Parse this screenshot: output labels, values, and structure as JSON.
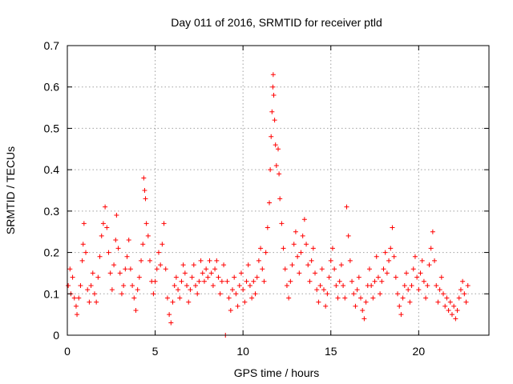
{
  "chart_data": {
    "type": "scatter",
    "title": "Day 011 of 2016, SRMTID for receiver ptld",
    "xlabel": "GPS time / hours",
    "ylabel": "SRMTID / TECUs",
    "xlim": [
      0,
      24
    ],
    "ylim": [
      0,
      0.7
    ],
    "xticks": [
      0,
      5,
      10,
      15,
      20
    ],
    "xtick_labels": [
      "0",
      "5",
      "10",
      "15",
      "20"
    ],
    "yticks": [
      0,
      0.1,
      0.2,
      0.3,
      0.4,
      0.5,
      0.6,
      0.7
    ],
    "ytick_labels": [
      "0",
      "0.1",
      "0.2",
      "0.3",
      "0.4",
      "0.5",
      "0.6",
      "0.7"
    ],
    "grid": true,
    "marker": "+",
    "color": "#ff0000",
    "series": [
      {
        "name": "SRMTID",
        "points": [
          [
            0.05,
            0.12
          ],
          [
            0.15,
            0.16
          ],
          [
            0.2,
            0.1
          ],
          [
            0.3,
            0.14
          ],
          [
            0.4,
            0.09
          ],
          [
            0.5,
            0.07
          ],
          [
            0.55,
            0.05
          ],
          [
            0.65,
            0.09
          ],
          [
            0.75,
            0.12
          ],
          [
            0.85,
            0.18
          ],
          [
            0.9,
            0.22
          ],
          [
            0.95,
            0.27
          ],
          [
            1.05,
            0.2
          ],
          [
            1.15,
            0.11
          ],
          [
            1.25,
            0.08
          ],
          [
            1.35,
            0.12
          ],
          [
            1.45,
            0.15
          ],
          [
            1.55,
            0.1
          ],
          [
            1.65,
            0.08
          ],
          [
            1.75,
            0.14
          ],
          [
            1.85,
            0.19
          ],
          [
            1.95,
            0.24
          ],
          [
            2.05,
            0.27
          ],
          [
            2.15,
            0.31
          ],
          [
            2.25,
            0.26
          ],
          [
            2.35,
            0.2
          ],
          [
            2.45,
            0.15
          ],
          [
            2.55,
            0.11
          ],
          [
            2.65,
            0.17
          ],
          [
            2.75,
            0.23
          ],
          [
            2.8,
            0.29
          ],
          [
            2.9,
            0.21
          ],
          [
            3.0,
            0.15
          ],
          [
            3.1,
            0.1
          ],
          [
            3.2,
            0.12
          ],
          [
            3.3,
            0.16
          ],
          [
            3.4,
            0.19
          ],
          [
            3.5,
            0.23
          ],
          [
            3.6,
            0.16
          ],
          [
            3.7,
            0.12
          ],
          [
            3.8,
            0.09
          ],
          [
            3.9,
            0.06
          ],
          [
            4.0,
            0.11
          ],
          [
            4.1,
            0.14
          ],
          [
            4.2,
            0.18
          ],
          [
            4.3,
            0.22
          ],
          [
            4.35,
            0.38
          ],
          [
            4.4,
            0.35
          ],
          [
            4.45,
            0.33
          ],
          [
            4.5,
            0.27
          ],
          [
            4.6,
            0.24
          ],
          [
            4.7,
            0.18
          ],
          [
            4.8,
            0.13
          ],
          [
            4.9,
            0.1
          ],
          [
            5.0,
            0.13
          ],
          [
            5.1,
            0.16
          ],
          [
            5.2,
            0.2
          ],
          [
            5.3,
            0.17
          ],
          [
            5.4,
            0.22
          ],
          [
            5.5,
            0.27
          ],
          [
            5.6,
            0.16
          ],
          [
            5.7,
            0.09
          ],
          [
            5.8,
            0.05
          ],
          [
            5.9,
            0.03
          ],
          [
            6.0,
            0.08
          ],
          [
            6.1,
            0.12
          ],
          [
            6.2,
            0.14
          ],
          [
            6.3,
            0.11
          ],
          [
            6.4,
            0.09
          ],
          [
            6.5,
            0.13
          ],
          [
            6.6,
            0.17
          ],
          [
            6.7,
            0.15
          ],
          [
            6.8,
            0.12
          ],
          [
            6.9,
            0.08
          ],
          [
            7.0,
            0.11
          ],
          [
            7.1,
            0.14
          ],
          [
            7.2,
            0.17
          ],
          [
            7.3,
            0.12
          ],
          [
            7.4,
            0.1
          ],
          [
            7.5,
            0.13
          ],
          [
            7.6,
            0.18
          ],
          [
            7.7,
            0.15
          ],
          [
            7.8,
            0.13
          ],
          [
            7.9,
            0.16
          ],
          [
            8.0,
            0.14
          ],
          [
            8.1,
            0.18
          ],
          [
            8.2,
            0.15
          ],
          [
            8.3,
            0.12
          ],
          [
            8.4,
            0.16
          ],
          [
            8.5,
            0.18
          ],
          [
            8.6,
            0.14
          ],
          [
            8.7,
            0.1
          ],
          [
            8.8,
            0.13
          ],
          [
            8.9,
            0.17
          ],
          [
            9.0,
            0.0
          ],
          [
            9.1,
            0.13
          ],
          [
            9.2,
            0.09
          ],
          [
            9.3,
            0.06
          ],
          [
            9.4,
            0.11
          ],
          [
            9.5,
            0.14
          ],
          [
            9.6,
            0.1
          ],
          [
            9.7,
            0.07
          ],
          [
            9.8,
            0.12
          ],
          [
            9.9,
            0.15
          ],
          [
            10.0,
            0.11
          ],
          [
            10.1,
            0.08
          ],
          [
            10.2,
            0.13
          ],
          [
            10.3,
            0.17
          ],
          [
            10.4,
            0.12
          ],
          [
            10.5,
            0.09
          ],
          [
            10.6,
            0.13
          ],
          [
            10.7,
            0.1
          ],
          [
            10.8,
            0.14
          ],
          [
            10.9,
            0.18
          ],
          [
            11.0,
            0.21
          ],
          [
            11.1,
            0.16
          ],
          [
            11.2,
            0.13
          ],
          [
            11.3,
            0.2
          ],
          [
            11.4,
            0.26
          ],
          [
            11.5,
            0.32
          ],
          [
            11.55,
            0.4
          ],
          [
            11.6,
            0.48
          ],
          [
            11.65,
            0.54
          ],
          [
            11.7,
            0.6
          ],
          [
            11.72,
            0.63
          ],
          [
            11.75,
            0.58
          ],
          [
            11.8,
            0.52
          ],
          [
            11.85,
            0.46
          ],
          [
            11.9,
            0.41
          ],
          [
            12.0,
            0.45
          ],
          [
            12.05,
            0.39
          ],
          [
            12.1,
            0.33
          ],
          [
            12.2,
            0.27
          ],
          [
            12.3,
            0.21
          ],
          [
            12.4,
            0.16
          ],
          [
            12.5,
            0.12
          ],
          [
            12.6,
            0.09
          ],
          [
            12.7,
            0.13
          ],
          [
            12.8,
            0.17
          ],
          [
            12.9,
            0.22
          ],
          [
            13.0,
            0.25
          ],
          [
            13.1,
            0.19
          ],
          [
            13.2,
            0.15
          ],
          [
            13.3,
            0.2
          ],
          [
            13.4,
            0.24
          ],
          [
            13.5,
            0.28
          ],
          [
            13.6,
            0.22
          ],
          [
            13.7,
            0.17
          ],
          [
            13.8,
            0.13
          ],
          [
            13.9,
            0.18
          ],
          [
            14.0,
            0.21
          ],
          [
            14.1,
            0.15
          ],
          [
            14.2,
            0.11
          ],
          [
            14.3,
            0.08
          ],
          [
            14.4,
            0.12
          ],
          [
            14.5,
            0.16
          ],
          [
            14.6,
            0.11
          ],
          [
            14.7,
            0.07
          ],
          [
            14.8,
            0.1
          ],
          [
            14.9,
            0.14
          ],
          [
            15.0,
            0.18
          ],
          [
            15.1,
            0.21
          ],
          [
            15.2,
            0.16
          ],
          [
            15.3,
            0.12
          ],
          [
            15.4,
            0.09
          ],
          [
            15.5,
            0.13
          ],
          [
            15.6,
            0.17
          ],
          [
            15.7,
            0.12
          ],
          [
            15.8,
            0.09
          ],
          [
            15.9,
            0.31
          ],
          [
            16.0,
            0.24
          ],
          [
            16.1,
            0.18
          ],
          [
            16.2,
            0.13
          ],
          [
            16.3,
            0.1
          ],
          [
            16.4,
            0.07
          ],
          [
            16.5,
            0.11
          ],
          [
            16.6,
            0.14
          ],
          [
            16.7,
            0.09
          ],
          [
            16.8,
            0.06
          ],
          [
            16.9,
            0.04
          ],
          [
            17.0,
            0.08
          ],
          [
            17.1,
            0.12
          ],
          [
            17.2,
            0.16
          ],
          [
            17.3,
            0.12
          ],
          [
            17.4,
            0.09
          ],
          [
            17.5,
            0.13
          ],
          [
            17.6,
            0.19
          ],
          [
            17.7,
            0.14
          ],
          [
            17.8,
            0.1
          ],
          [
            17.9,
            0.13
          ],
          [
            18.0,
            0.16
          ],
          [
            18.1,
            0.2
          ],
          [
            18.2,
            0.15
          ],
          [
            18.3,
            0.18
          ],
          [
            18.4,
            0.21
          ],
          [
            18.5,
            0.26
          ],
          [
            18.6,
            0.19
          ],
          [
            18.7,
            0.14
          ],
          [
            18.8,
            0.1
          ],
          [
            18.9,
            0.07
          ],
          [
            19.0,
            0.05
          ],
          [
            19.1,
            0.09
          ],
          [
            19.2,
            0.12
          ],
          [
            19.3,
            0.15
          ],
          [
            19.4,
            0.11
          ],
          [
            19.5,
            0.08
          ],
          [
            19.6,
            0.12
          ],
          [
            19.7,
            0.16
          ],
          [
            19.8,
            0.19
          ],
          [
            19.9,
            0.14
          ],
          [
            20.0,
            0.11
          ],
          [
            20.1,
            0.15
          ],
          [
            20.2,
            0.18
          ],
          [
            20.3,
            0.13
          ],
          [
            20.4,
            0.09
          ],
          [
            20.5,
            0.12
          ],
          [
            20.6,
            0.17
          ],
          [
            20.7,
            0.21
          ],
          [
            20.8,
            0.25
          ],
          [
            20.9,
            0.18
          ],
          [
            21.0,
            0.12
          ],
          [
            21.1,
            0.08
          ],
          [
            21.2,
            0.11
          ],
          [
            21.3,
            0.14
          ],
          [
            21.4,
            0.1
          ],
          [
            21.5,
            0.07
          ],
          [
            21.6,
            0.09
          ],
          [
            21.7,
            0.06
          ],
          [
            21.8,
            0.08
          ],
          [
            21.9,
            0.05
          ],
          [
            22.0,
            0.07
          ],
          [
            22.1,
            0.04
          ],
          [
            22.2,
            0.06
          ],
          [
            22.3,
            0.09
          ],
          [
            22.4,
            0.11
          ],
          [
            22.5,
            0.13
          ],
          [
            22.6,
            0.1
          ],
          [
            22.7,
            0.08
          ],
          [
            22.8,
            0.12
          ]
        ]
      }
    ]
  }
}
